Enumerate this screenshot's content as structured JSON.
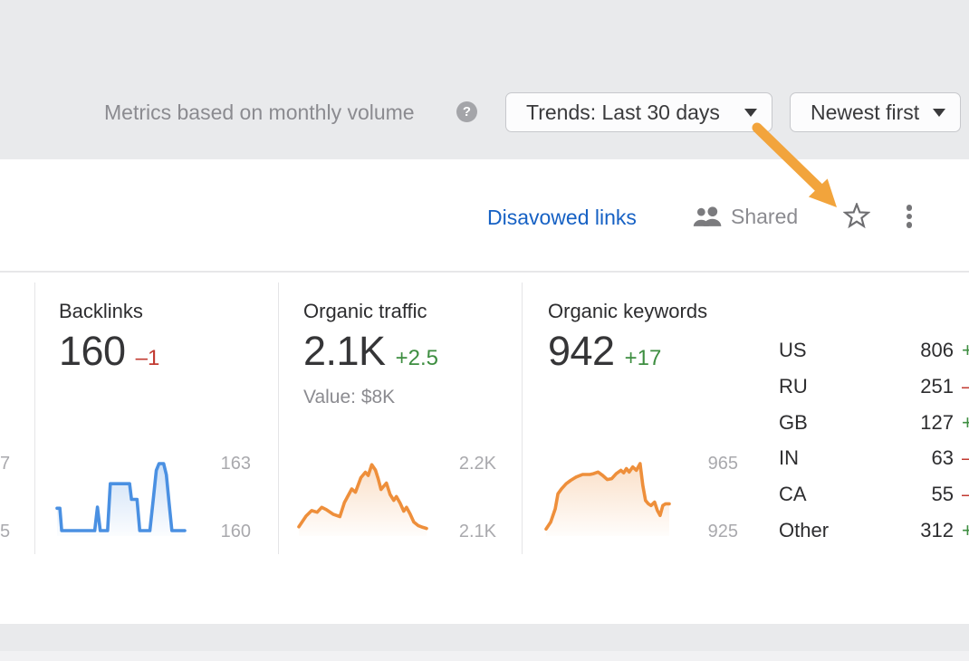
{
  "header": {
    "metrics_note": "Metrics based on monthly volume",
    "trends_dropdown_label": "Trends: Last 30 days",
    "sort_dropdown_label": "Newest first"
  },
  "icons": {
    "help_glyph": "?"
  },
  "toolbar": {
    "disavowed_links_label": "Disavowed links",
    "shared_label": "Shared"
  },
  "metrics": {
    "backlinks": {
      "title": "Backlinks",
      "value": "160",
      "delta": "–1",
      "delta_direction": "down",
      "spark": {
        "type": "area",
        "color": "#4A90E2",
        "y_top_label": "163",
        "y_bottom_label": "160",
        "vmin": 160,
        "vmax": 163,
        "points": [
          [
            0.007,
            161
          ],
          [
            0.029,
            161
          ],
          [
            0.043,
            160
          ],
          [
            0.286,
            160
          ],
          [
            0.3,
            160
          ],
          [
            0.321,
            161.05
          ],
          [
            0.343,
            160
          ],
          [
            0.4,
            160
          ],
          [
            0.421,
            162.1
          ],
          [
            0.571,
            162.1
          ],
          [
            0.586,
            161.4
          ],
          [
            0.629,
            161.4
          ],
          [
            0.65,
            160
          ],
          [
            0.729,
            160
          ],
          [
            0.757,
            161.5
          ],
          [
            0.779,
            162.7
          ],
          [
            0.8,
            163
          ],
          [
            0.836,
            163
          ],
          [
            0.857,
            162.5
          ],
          [
            0.879,
            161.2
          ],
          [
            0.9,
            160
          ],
          [
            1,
            160
          ]
        ]
      }
    },
    "organic_traffic": {
      "title": "Organic traffic",
      "value": "2.1K",
      "delta": "+2.5",
      "delta_direction": "up",
      "value_note": "Value: $8K",
      "spark": {
        "type": "area",
        "color": "#EE8F3B",
        "y_top_label": "2.2K",
        "y_bottom_label": "2.1K",
        "vmin": 2.088,
        "vmax": 2.212,
        "points": [
          [
            0,
            2.095
          ],
          [
            0.057,
            2.115
          ],
          [
            0.1,
            2.125
          ],
          [
            0.143,
            2.122
          ],
          [
            0.179,
            2.131
          ],
          [
            0.214,
            2.127
          ],
          [
            0.271,
            2.118
          ],
          [
            0.321,
            2.114
          ],
          [
            0.357,
            2.14
          ],
          [
            0.414,
            2.165
          ],
          [
            0.443,
            2.159
          ],
          [
            0.486,
            2.186
          ],
          [
            0.521,
            2.196
          ],
          [
            0.543,
            2.19
          ],
          [
            0.571,
            2.21
          ],
          [
            0.6,
            2.2
          ],
          [
            0.621,
            2.184
          ],
          [
            0.643,
            2.164
          ],
          [
            0.664,
            2.17
          ],
          [
            0.686,
            2.176
          ],
          [
            0.714,
            2.155
          ],
          [
            0.743,
            2.144
          ],
          [
            0.764,
            2.151
          ],
          [
            0.793,
            2.139
          ],
          [
            0.821,
            2.124
          ],
          [
            0.843,
            2.131
          ],
          [
            0.871,
            2.119
          ],
          [
            0.9,
            2.104
          ],
          [
            0.936,
            2.097
          ],
          [
            0.971,
            2.094
          ],
          [
            1,
            2.092
          ]
        ]
      }
    },
    "organic_keywords": {
      "title": "Organic keywords",
      "value": "942",
      "delta": "+17",
      "delta_direction": "up",
      "spark": {
        "type": "area",
        "color": "#EE8F3B",
        "y_top_label": "965",
        "y_bottom_label": "925",
        "vmin": 925,
        "vmax": 965,
        "points": [
          [
            0,
            926
          ],
          [
            0.037,
            930
          ],
          [
            0.074,
            938
          ],
          [
            0.096,
            947
          ],
          [
            0.126,
            950
          ],
          [
            0.163,
            953
          ],
          [
            0.2,
            955
          ],
          [
            0.244,
            957
          ],
          [
            0.296,
            958.5
          ],
          [
            0.356,
            958.5
          ],
          [
            0.385,
            959
          ],
          [
            0.422,
            960
          ],
          [
            0.459,
            958
          ],
          [
            0.496,
            955.5
          ],
          [
            0.533,
            956
          ],
          [
            0.57,
            959
          ],
          [
            0.607,
            961
          ],
          [
            0.63,
            959.5
          ],
          [
            0.652,
            962
          ],
          [
            0.674,
            960
          ],
          [
            0.704,
            963
          ],
          [
            0.733,
            961
          ],
          [
            0.763,
            965
          ],
          [
            0.785,
            952
          ],
          [
            0.807,
            943
          ],
          [
            0.83,
            941
          ],
          [
            0.852,
            940
          ],
          [
            0.881,
            942
          ],
          [
            0.904,
            937
          ],
          [
            0.926,
            934
          ],
          [
            0.948,
            940
          ],
          [
            0.97,
            941
          ],
          [
            1,
            941
          ]
        ]
      }
    },
    "cropped_left_chart": {
      "y_top_label": "7",
      "y_bottom_label": "5"
    }
  },
  "countries": [
    {
      "code": "US",
      "value": "806",
      "sign": "+",
      "direction": "up"
    },
    {
      "code": "RU",
      "value": "251",
      "sign": "–",
      "direction": "down"
    },
    {
      "code": "GB",
      "value": "127",
      "sign": "+",
      "direction": "up"
    },
    {
      "code": "IN",
      "value": "63",
      "sign": "–",
      "direction": "down"
    },
    {
      "code": "CA",
      "value": "55",
      "sign": "–",
      "direction": "down"
    },
    {
      "code": "Other",
      "value": "312",
      "sign": "+",
      "direction": "up"
    }
  ],
  "annotation_arrow": {
    "color": "#F2A43C",
    "points_to": "favorite-star-icon"
  },
  "colors": {
    "top_bar_bg": "#E9EAEC",
    "link_blue": "#1661C4",
    "delta_up_green": "#3E8E41",
    "delta_down_red": "#C23A31",
    "spark_blue": "#4A90E2",
    "spark_orange": "#EE8F3B",
    "muted_text": "#8B8B90",
    "axis_text": "#A9A9AD"
  }
}
